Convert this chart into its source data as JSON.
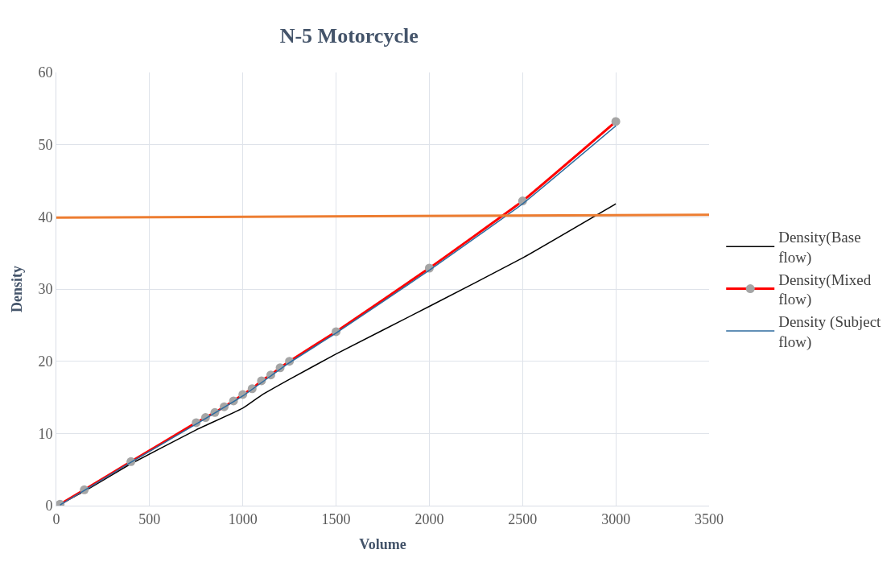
{
  "chart_data": {
    "type": "line",
    "title": "N-5 Motorcycle",
    "xlabel": "Volume",
    "ylabel": "Density",
    "xlim": [
      0,
      3500
    ],
    "xticks": [
      0,
      500,
      1000,
      1500,
      2000,
      2500,
      3000,
      3500
    ],
    "ylim": [
      0,
      60
    ],
    "yticks": [
      0,
      10,
      20,
      30,
      40,
      50,
      60
    ],
    "grid": true,
    "legend": "right",
    "series": [
      {
        "name": "Density(Base flow)",
        "color": "#000000",
        "marker": "none",
        "x": [
          20,
          150,
          400,
          750,
          1000,
          1100,
          1250,
          1500,
          2000,
          2500,
          3000
        ],
        "values": [
          0.2,
          2.0,
          5.8,
          10.5,
          13.5,
          15.3,
          17.5,
          21.0,
          27.6,
          34.3,
          41.8
        ]
      },
      {
        "name": "Density(Mixed flow)",
        "color": "#ff0000",
        "marker": "circle",
        "x": [
          20,
          150,
          400,
          750,
          800,
          850,
          900,
          950,
          1000,
          1050,
          1100,
          1150,
          1200,
          1250,
          1500,
          2000,
          2500,
          3000
        ],
        "values": [
          0.2,
          2.2,
          6.1,
          11.5,
          12.2,
          12.9,
          13.7,
          14.5,
          15.4,
          16.2,
          17.3,
          18.1,
          19.1,
          20.0,
          24.1,
          32.9,
          42.2,
          53.2
        ]
      },
      {
        "name": "Density (Subject flow)",
        "color": "#2e6b9e",
        "marker": "none",
        "x": [
          20,
          150,
          400,
          750,
          1000,
          1250,
          1500,
          2000,
          2500,
          3000
        ],
        "values": [
          0.1,
          2.1,
          6.0,
          11.3,
          15.2,
          19.8,
          23.9,
          32.6,
          41.8,
          52.6
        ]
      },
      {
        "color": "#ed7d31",
        "marker": "none",
        "x": [
          0,
          3500
        ],
        "values": [
          39.9,
          40.3
        ]
      }
    ]
  }
}
